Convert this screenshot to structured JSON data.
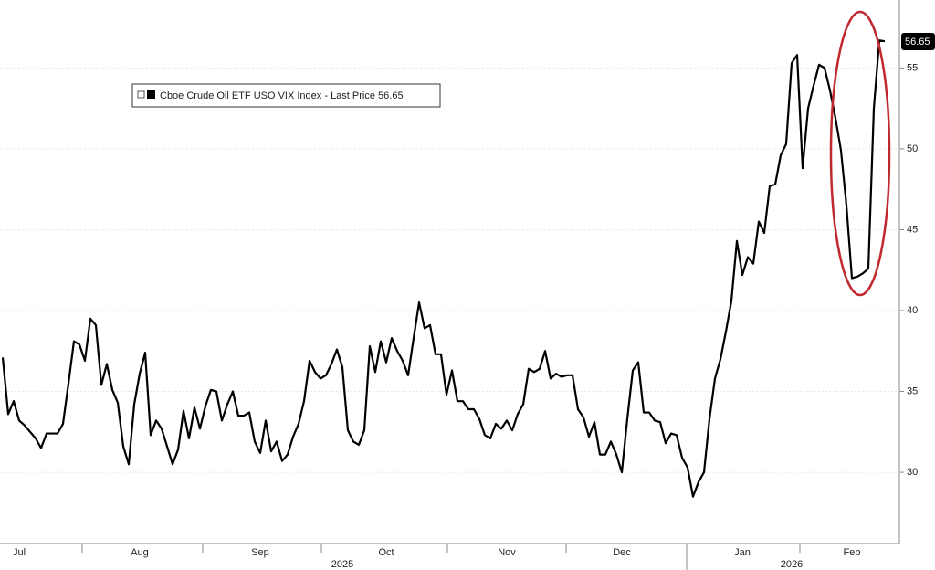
{
  "chart_data": {
    "type": "line",
    "legend": "Cboe Crude Oil ETF USO VIX Index - Last Price 56.65",
    "last_price_label": "56.65",
    "color": "#000000",
    "ylim": [
      25.6,
      59.2
    ],
    "yticks": [
      30,
      35,
      40,
      45,
      50,
      55
    ],
    "x_labels": [
      {
        "index": 3,
        "label": "Jul"
      },
      {
        "index": 25,
        "label": "Aug"
      },
      {
        "index": 47,
        "label": "Sep"
      },
      {
        "index": 70,
        "label": "Oct"
      },
      {
        "index": 92,
        "label": "Nov"
      },
      {
        "index": 113,
        "label": "Dec"
      },
      {
        "index": 135,
        "label": "Jan"
      },
      {
        "index": 155,
        "label": "Feb"
      }
    ],
    "year_labels": [
      {
        "index": 62,
        "label": "2025"
      },
      {
        "index": 144,
        "label": "2026"
      }
    ],
    "values": [
      37.1,
      33.6,
      34.4,
      33.2,
      32.9,
      32.5,
      32.1,
      31.5,
      32.4,
      32.4,
      32.4,
      33.0,
      35.5,
      38.1,
      37.9,
      36.9,
      39.5,
      39.1,
      35.4,
      36.7,
      35.1,
      34.3,
      31.6,
      30.5,
      34.2,
      36.1,
      37.4,
      32.3,
      33.2,
      32.7,
      31.6,
      30.5,
      31.4,
      33.8,
      32.1,
      34.0,
      32.7,
      34.1,
      35.1,
      35.0,
      33.2,
      34.2,
      35.0,
      33.5,
      33.5,
      33.7,
      31.9,
      31.2,
      33.2,
      31.3,
      31.9,
      30.7,
      31.1,
      32.2,
      33.0,
      34.4,
      36.9,
      36.2,
      35.8,
      36.0,
      36.7,
      37.6,
      36.5,
      32.6,
      31.9,
      31.7,
      32.6,
      37.8,
      36.2,
      38.1,
      36.8,
      38.3,
      37.5,
      36.9,
      36.0,
      38.3,
      40.5,
      38.9,
      39.1,
      37.3,
      37.3,
      34.8,
      36.3,
      34.4,
      34.4,
      33.9,
      33.9,
      33.3,
      32.3,
      32.1,
      33.0,
      32.7,
      33.2,
      32.6,
      33.6,
      34.2,
      36.4,
      36.2,
      36.4,
      37.5,
      35.8,
      36.1,
      35.9,
      36.0,
      36.0,
      33.9,
      33.4,
      32.2,
      33.1,
      31.1,
      31.1,
      31.9,
      31.1,
      30.0,
      33.3,
      36.3,
      36.8,
      33.7,
      33.7,
      33.2,
      33.1,
      31.8,
      32.4,
      32.3,
      30.9,
      30.3,
      28.5,
      29.4,
      30.0,
      33.3,
      35.8,
      37.0,
      38.7,
      40.6,
      44.3,
      42.2,
      43.3,
      42.9,
      45.5,
      44.8,
      47.7,
      47.8,
      49.6,
      50.3,
      55.3,
      55.8,
      48.8,
      52.5,
      53.9,
      55.2,
      55.0,
      53.6,
      51.9,
      49.9,
      46.5,
      42.0,
      42.1,
      42.3,
      42.6,
      52.5,
      56.7,
      56.65
    ]
  }
}
